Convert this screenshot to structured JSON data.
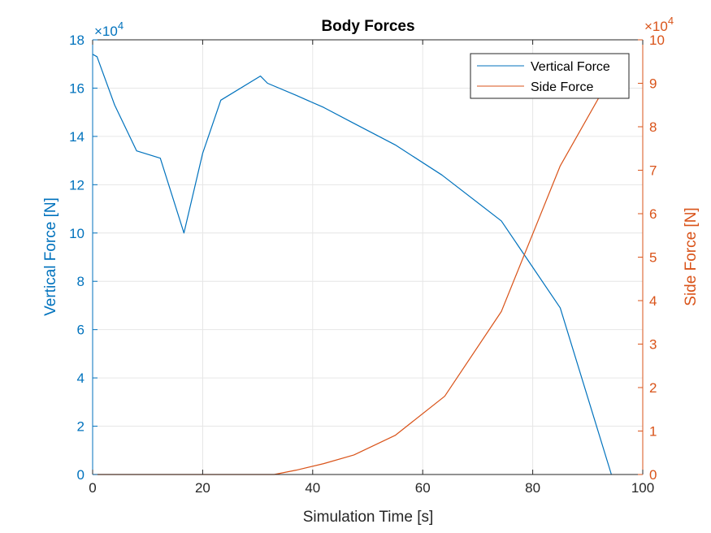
{
  "chart_data": {
    "type": "line",
    "title": "Body Forces",
    "xlabel": "Simulation Time [s]",
    "ylabel_left": "Vertical Force [N]",
    "ylabel_right": "Side Force [N]",
    "xlim": [
      0,
      100
    ],
    "ylim_left": [
      0,
      18
    ],
    "ylim_right": [
      0,
      10
    ],
    "x_ticks": [
      "0",
      "20",
      "40",
      "60",
      "80",
      "100"
    ],
    "y_left_ticks": [
      "0",
      "2",
      "4",
      "6",
      "8",
      "10",
      "12",
      "14",
      "16",
      "18"
    ],
    "y_right_ticks": [
      "0",
      "1",
      "2",
      "3",
      "4",
      "5",
      "6",
      "7",
      "8",
      "9",
      "10"
    ],
    "y_left_exponent": {
      "base": "×10",
      "power": "4"
    },
    "y_right_exponent": {
      "base": "×10",
      "power": "4"
    },
    "grid": true,
    "legend_position": "top-right",
    "colors": {
      "left_axis": "#0072BD",
      "right_axis": "#D95319",
      "grid": "#e6e6e6",
      "axes": "#262626"
    },
    "series": [
      {
        "name": "Vertical Force",
        "axis": "left",
        "color": "#0072BD",
        "x": [
          0,
          0.8,
          4,
          8,
          12.3,
          16.6,
          20,
          23.3,
          30.5,
          31.8,
          37,
          42,
          47,
          55,
          63.5,
          74.3,
          85,
          94.3
        ],
        "y": [
          17.4,
          17.3,
          15.3,
          13.4,
          13.1,
          10.0,
          13.3,
          15.5,
          16.5,
          16.2,
          15.7,
          15.2,
          14.6,
          13.65,
          12.4,
          10.5,
          6.9,
          0
        ]
      },
      {
        "name": "Side Force",
        "axis": "right",
        "color": "#D95319",
        "x": [
          0,
          33,
          37,
          42,
          47.5,
          55,
          64,
          74.3,
          85,
          93.5
        ],
        "y": [
          0,
          0,
          0.1,
          0.25,
          0.45,
          0.9,
          1.8,
          3.75,
          7.1,
          9.0
        ]
      }
    ]
  }
}
